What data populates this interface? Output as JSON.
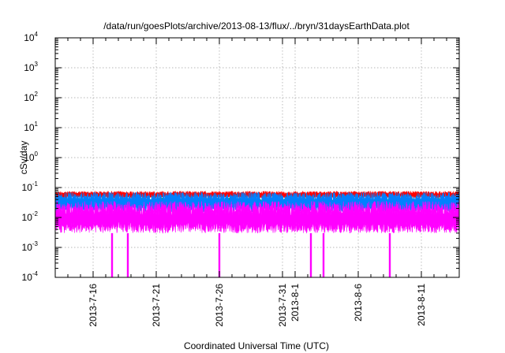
{
  "chart_data": {
    "type": "area",
    "title": "/data/run/goesPlots/archive/2013-08-13/flux/../bryn/31daysEarthData.plot",
    "xlabel": "Coordinated Universal Time (UTC)",
    "ylabel": "cSv/day",
    "x_range": [
      "2013-07-13",
      "2013-08-14"
    ],
    "ylim": [
      0.0001,
      10000
    ],
    "y_scale": "log",
    "grid": true,
    "legend": "none",
    "y_ticks": [
      {
        "value": 0.0001,
        "base": "10",
        "exp": "-4"
      },
      {
        "value": 0.001,
        "base": "10",
        "exp": "-3"
      },
      {
        "value": 0.01,
        "base": "10",
        "exp": "-2"
      },
      {
        "value": 0.1,
        "base": "10",
        "exp": "-1"
      },
      {
        "value": 1,
        "base": "10",
        "exp": "0"
      },
      {
        "value": 10,
        "base": "10",
        "exp": "1"
      },
      {
        "value": 100,
        "base": "10",
        "exp": "2"
      },
      {
        "value": 1000,
        "base": "10",
        "exp": "3"
      },
      {
        "value": 10000,
        "base": "10",
        "exp": "4"
      }
    ],
    "x_ticks": [
      {
        "date": "2013-07-16",
        "lines": [
          "2013-7-16"
        ]
      },
      {
        "date": "2013-07-21",
        "lines": [
          "2013-7-21"
        ]
      },
      {
        "date": "2013-07-26",
        "lines": [
          "2013-7-26"
        ]
      },
      {
        "date": "2013-07-31",
        "lines": [
          "2013-7-31"
        ]
      },
      {
        "date": "2013-08-01",
        "lines": [
          "2013-8-1"
        ]
      },
      {
        "date": "2013-08-06",
        "lines": [
          "2013-8-6"
        ]
      },
      {
        "date": "2013-08-11",
        "lines": [
          "2013-8-11"
        ]
      }
    ],
    "series": [
      {
        "color": "#ff0000",
        "low": 0.045,
        "high": 0.075
      },
      {
        "color": "#00c000",
        "low": 0.025,
        "high": 0.045
      },
      {
        "color": "#0080ff",
        "low": 0.015,
        "high": 0.07
      },
      {
        "color": "#ff00ff",
        "low": 0.003,
        "high": 0.035
      }
    ],
    "dropouts": [
      {
        "date": "2013-07-17T12:00",
        "value": 0.0001
      },
      {
        "date": "2013-07-18T18:00",
        "value": 0.0001
      },
      {
        "date": "2013-07-26T00:00",
        "value": 0.0001
      },
      {
        "date": "2013-08-02T06:00",
        "value": 0.0001
      },
      {
        "date": "2013-08-03T06:00",
        "value": 0.0001
      },
      {
        "date": "2013-08-08T12:00",
        "value": 0.0001
      }
    ]
  }
}
